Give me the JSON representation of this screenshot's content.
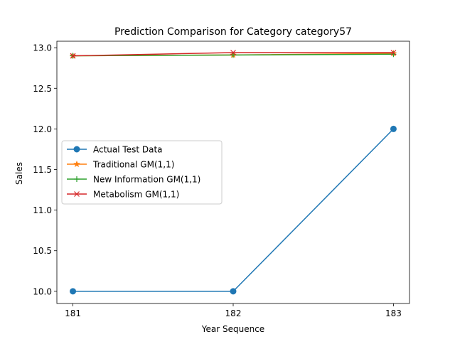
{
  "chart_data": {
    "type": "line",
    "title": "Prediction Comparison for Category category57",
    "xlabel": "Year Sequence",
    "ylabel": "Sales",
    "x": [
      181,
      182,
      183
    ],
    "xlim": [
      180.9,
      183.1
    ],
    "ylim": [
      9.85,
      13.08
    ],
    "x_ticks": [
      "181",
      "182",
      "183"
    ],
    "y_ticks": [
      10.0,
      10.5,
      11.0,
      11.5,
      12.0,
      12.5,
      13.0
    ],
    "y_tick_labels": [
      "10.0",
      "10.5",
      "11.0",
      "11.5",
      "12.0",
      "12.5",
      "13.0"
    ],
    "grid": false,
    "legend_position": "center-left",
    "series": [
      {
        "name": "Actual Test Data",
        "values": [
          10.0,
          10.0,
          12.0
        ],
        "color": "#1f77b4",
        "marker": "circle"
      },
      {
        "name": "Traditional GM(1,1)",
        "values": [
          12.9,
          12.91,
          12.93
        ],
        "color": "#ff7f0e",
        "marker": "star"
      },
      {
        "name": "New Information GM(1,1)",
        "values": [
          12.9,
          12.91,
          12.92
        ],
        "color": "#2ca02c",
        "marker": "plus"
      },
      {
        "name": "Metabolism GM(1,1)",
        "values": [
          12.9,
          12.94,
          12.94
        ],
        "color": "#d62728",
        "marker": "x"
      }
    ]
  }
}
